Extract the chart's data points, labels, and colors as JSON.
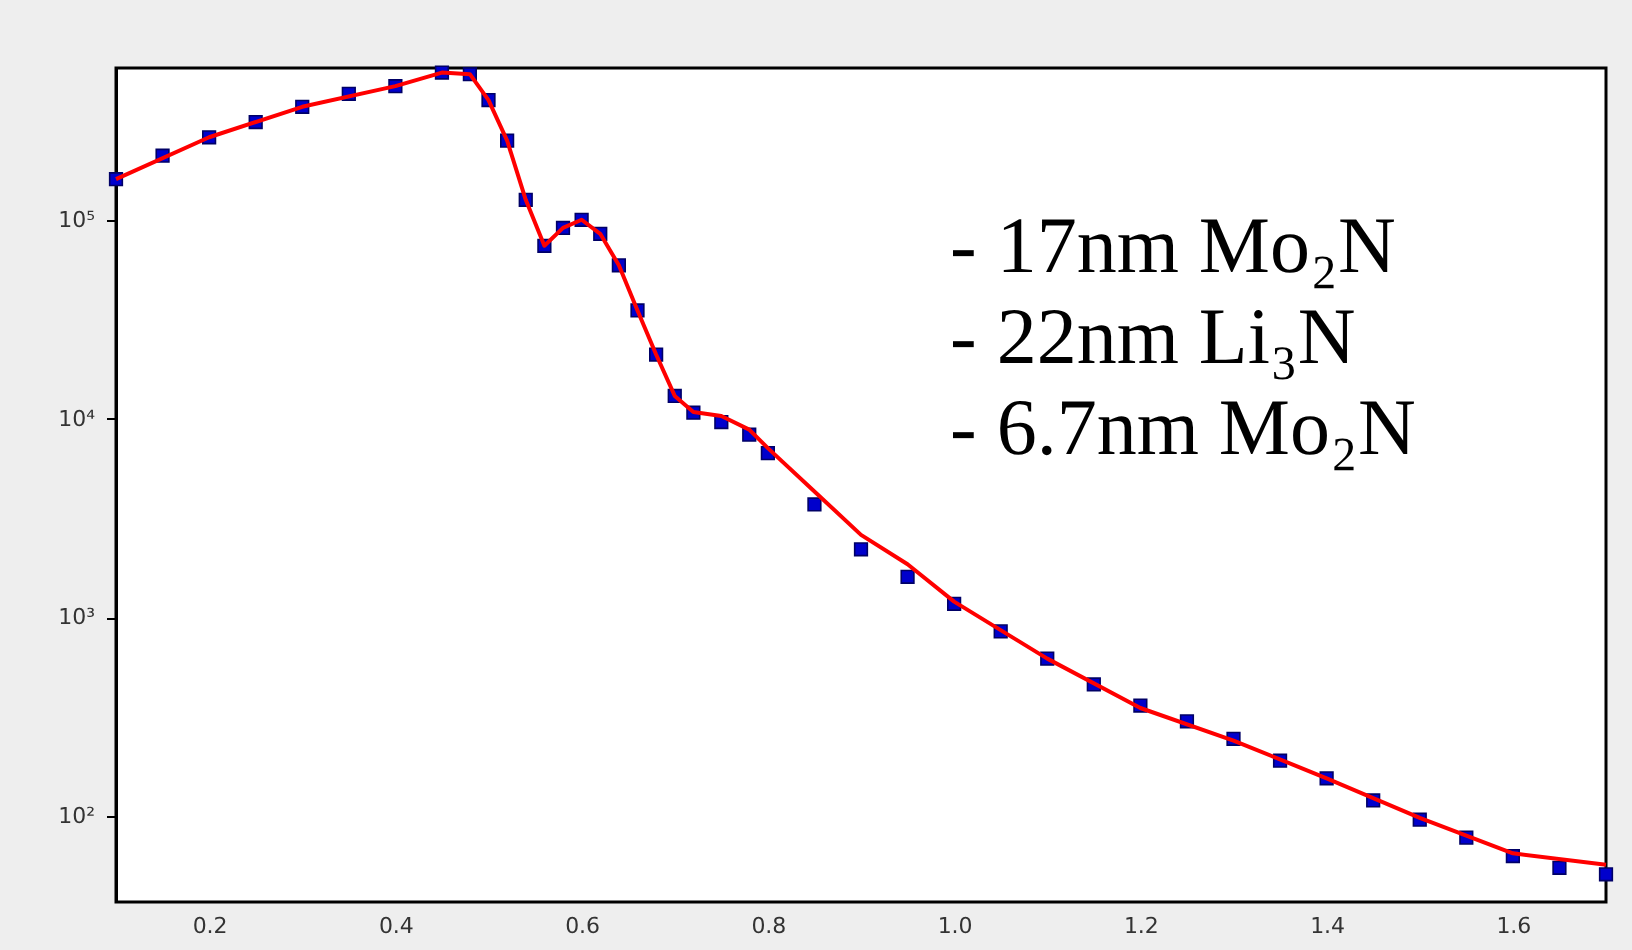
{
  "chart_data": {
    "type": "scatter",
    "annotations": [
      "- 17nm Mo₂N",
      "- 22nm Li₃N",
      "- 6.7nm Mo₂N"
    ],
    "log": "y",
    "grid": false,
    "xlim": [
      0.1,
      1.7
    ],
    "ylim": [
      37,
      580000
    ],
    "xticks": [
      0.2,
      0.4,
      0.6,
      0.8,
      {
        "value": 1,
        "label": "1.0"
      },
      1.2,
      1.4,
      1.6
    ],
    "yticks": [
      {
        "value": 100,
        "label": "10²"
      },
      {
        "value": 1000,
        "label": "10³"
      },
      {
        "value": 10000,
        "label": "10⁴"
      },
      {
        "value": 100000,
        "label": "10⁵"
      }
    ],
    "series": [
      {
        "marker": "square",
        "color": "#0000cc",
        "x": [
          0.1,
          0.15,
          0.2,
          0.25,
          0.3,
          0.35,
          0.4,
          0.45,
          0.48,
          0.5,
          0.52,
          0.54,
          0.56,
          0.58,
          0.6,
          0.62,
          0.64,
          0.66,
          0.68,
          0.7,
          0.72,
          0.75,
          0.78,
          0.8,
          0.85,
          0.9,
          0.95,
          1.0,
          1.05,
          1.1,
          1.15,
          1.2,
          1.25,
          1.3,
          1.35,
          1.4,
          1.45,
          1.5,
          1.55,
          1.6,
          1.65,
          1.7
        ],
        "values": [
          160000,
          210000,
          260000,
          310000,
          370000,
          430000,
          470000,
          550000,
          540000,
          400000,
          250000,
          126000,
          74000,
          91000,
          100000,
          85000,
          59000,
          35000,
          21000,
          13000,
          10700,
          9600,
          8300,
          6700,
          3700,
          2200,
          1600,
          1170,
          850,
          620,
          460,
          360,
          300,
          245,
          190,
          155,
          120,
          96,
          78,
          63,
          55,
          51
        ]
      },
      {
        "type": "line",
        "marker": "none",
        "line_style": "solid",
        "color": "#ff0000",
        "x": [
          0.1,
          0.2,
          0.3,
          0.4,
          0.45,
          0.48,
          0.5,
          0.52,
          0.54,
          0.56,
          0.58,
          0.6,
          0.62,
          0.64,
          0.66,
          0.68,
          0.7,
          0.72,
          0.75,
          0.78,
          0.8,
          0.85,
          0.9,
          0.95,
          1.0,
          1.1,
          1.2,
          1.3,
          1.4,
          1.5,
          1.6,
          1.7
        ],
        "values": [
          160000,
          260000,
          370000,
          470000,
          550000,
          540000,
          400000,
          250000,
          126000,
          74000,
          91000,
          100000,
          85000,
          59000,
          35000,
          21000,
          13000,
          10800,
          10300,
          8800,
          7100,
          4300,
          2600,
          1850,
          1200,
          620,
          350,
          240,
          155,
          98,
          65,
          57
        ]
      }
    ]
  }
}
